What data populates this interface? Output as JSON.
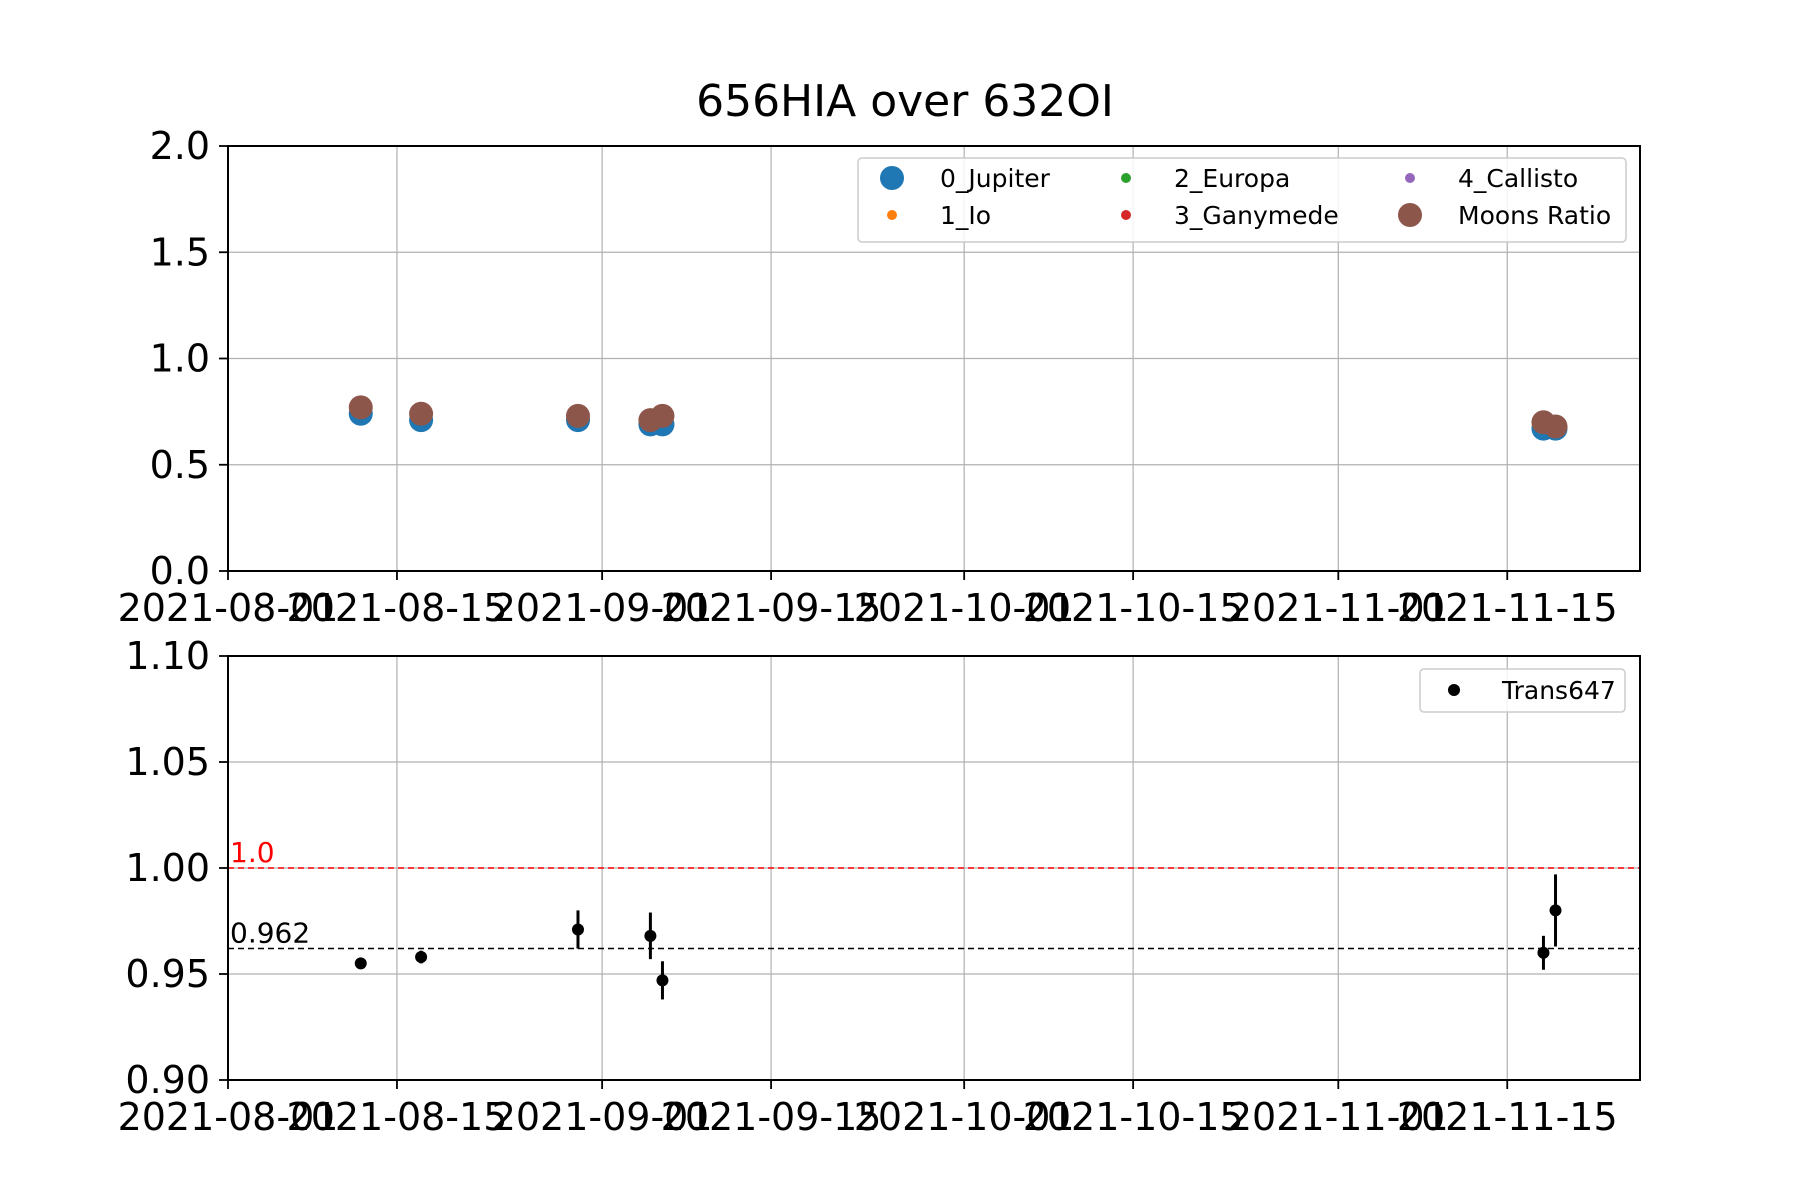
{
  "figure": {
    "title": "656HIA over 632OI"
  },
  "chart_data": [
    {
      "type": "scatter",
      "xaxis_type": "date",
      "xlim": [
        "2021-08-01",
        "2021-11-26"
      ],
      "ylim": [
        0.0,
        2.0
      ],
      "grid": true,
      "xticks": [
        "2021-08-01",
        "2021-08-15",
        "2021-09-01",
        "2021-09-15",
        "2021-10-01",
        "2021-10-15",
        "2021-11-01",
        "2021-11-15"
      ],
      "xtick_labels": [
        "2021-08-01",
        "2021-08-15",
        "2021-09-01",
        "2021-09-15",
        "2021-10-01",
        "2021-10-15",
        "2021-11-01",
        "2021-11-15"
      ],
      "yticks": [
        0.0,
        0.5,
        1.0,
        1.5,
        2.0
      ],
      "ytick_labels": [
        "0.0",
        "0.5",
        "1.0",
        "1.5",
        "2.0"
      ],
      "legend_position": "top-right",
      "legend_columns": 3,
      "series": [
        {
          "name": "0_Jupiter",
          "color": "#1f77b4",
          "marker": "large",
          "x": [
            "2021-08-12",
            "2021-08-17",
            "2021-08-30",
            "2021-09-05",
            "2021-09-06",
            "2021-11-18",
            "2021-11-19"
          ],
          "y": [
            0.74,
            0.71,
            0.71,
            0.69,
            0.69,
            0.67,
            0.67
          ]
        },
        {
          "name": "1_Io",
          "color": "#ff7f0e",
          "marker": "small",
          "x": [],
          "y": []
        },
        {
          "name": "2_Europa",
          "color": "#2ca02c",
          "marker": "small",
          "x": [],
          "y": []
        },
        {
          "name": "3_Ganymede",
          "color": "#d62728",
          "marker": "small",
          "x": [],
          "y": []
        },
        {
          "name": "4_Callisto",
          "color": "#9467bd",
          "marker": "small",
          "x": [],
          "y": []
        },
        {
          "name": "Moons Ratio",
          "color": "#8c564b",
          "marker": "large",
          "x": [
            "2021-08-12",
            "2021-08-17",
            "2021-08-30",
            "2021-09-05",
            "2021-09-06",
            "2021-11-18",
            "2021-11-19"
          ],
          "y": [
            0.77,
            0.74,
            0.73,
            0.71,
            0.73,
            0.7,
            0.68
          ]
        }
      ]
    },
    {
      "type": "scatter",
      "xaxis_type": "date",
      "xlim": [
        "2021-08-01",
        "2021-11-26"
      ],
      "ylim": [
        0.9,
        1.1
      ],
      "grid": true,
      "xticks": [
        "2021-08-01",
        "2021-08-15",
        "2021-09-01",
        "2021-09-15",
        "2021-10-01",
        "2021-10-15",
        "2021-11-01",
        "2021-11-15"
      ],
      "xtick_labels": [
        "2021-08-01",
        "2021-08-15",
        "2021-09-01",
        "2021-09-15",
        "2021-10-01",
        "2021-10-15",
        "2021-11-01",
        "2021-11-15"
      ],
      "yticks": [
        0.9,
        0.95,
        1.0,
        1.05,
        1.1
      ],
      "ytick_labels": [
        "0.90",
        "0.95",
        "1.00",
        "1.05",
        "1.10"
      ],
      "legend_position": "top-right",
      "series": [
        {
          "name": "Trans647",
          "color": "#000000",
          "x": [
            "2021-08-12",
            "2021-08-17",
            "2021-08-30",
            "2021-09-05",
            "2021-09-06",
            "2021-11-18",
            "2021-11-19"
          ],
          "y": [
            0.955,
            0.958,
            0.971,
            0.968,
            0.947,
            0.96,
            0.98
          ],
          "yerr": [
            0.001,
            0.003,
            0.009,
            0.011,
            0.009,
            0.008,
            0.017
          ]
        }
      ],
      "reference_lines": [
        {
          "y": 1.0,
          "label": "1.0",
          "color": "#ff0000"
        },
        {
          "y": 0.962,
          "label": "0.962",
          "color": "#000000"
        }
      ]
    }
  ]
}
